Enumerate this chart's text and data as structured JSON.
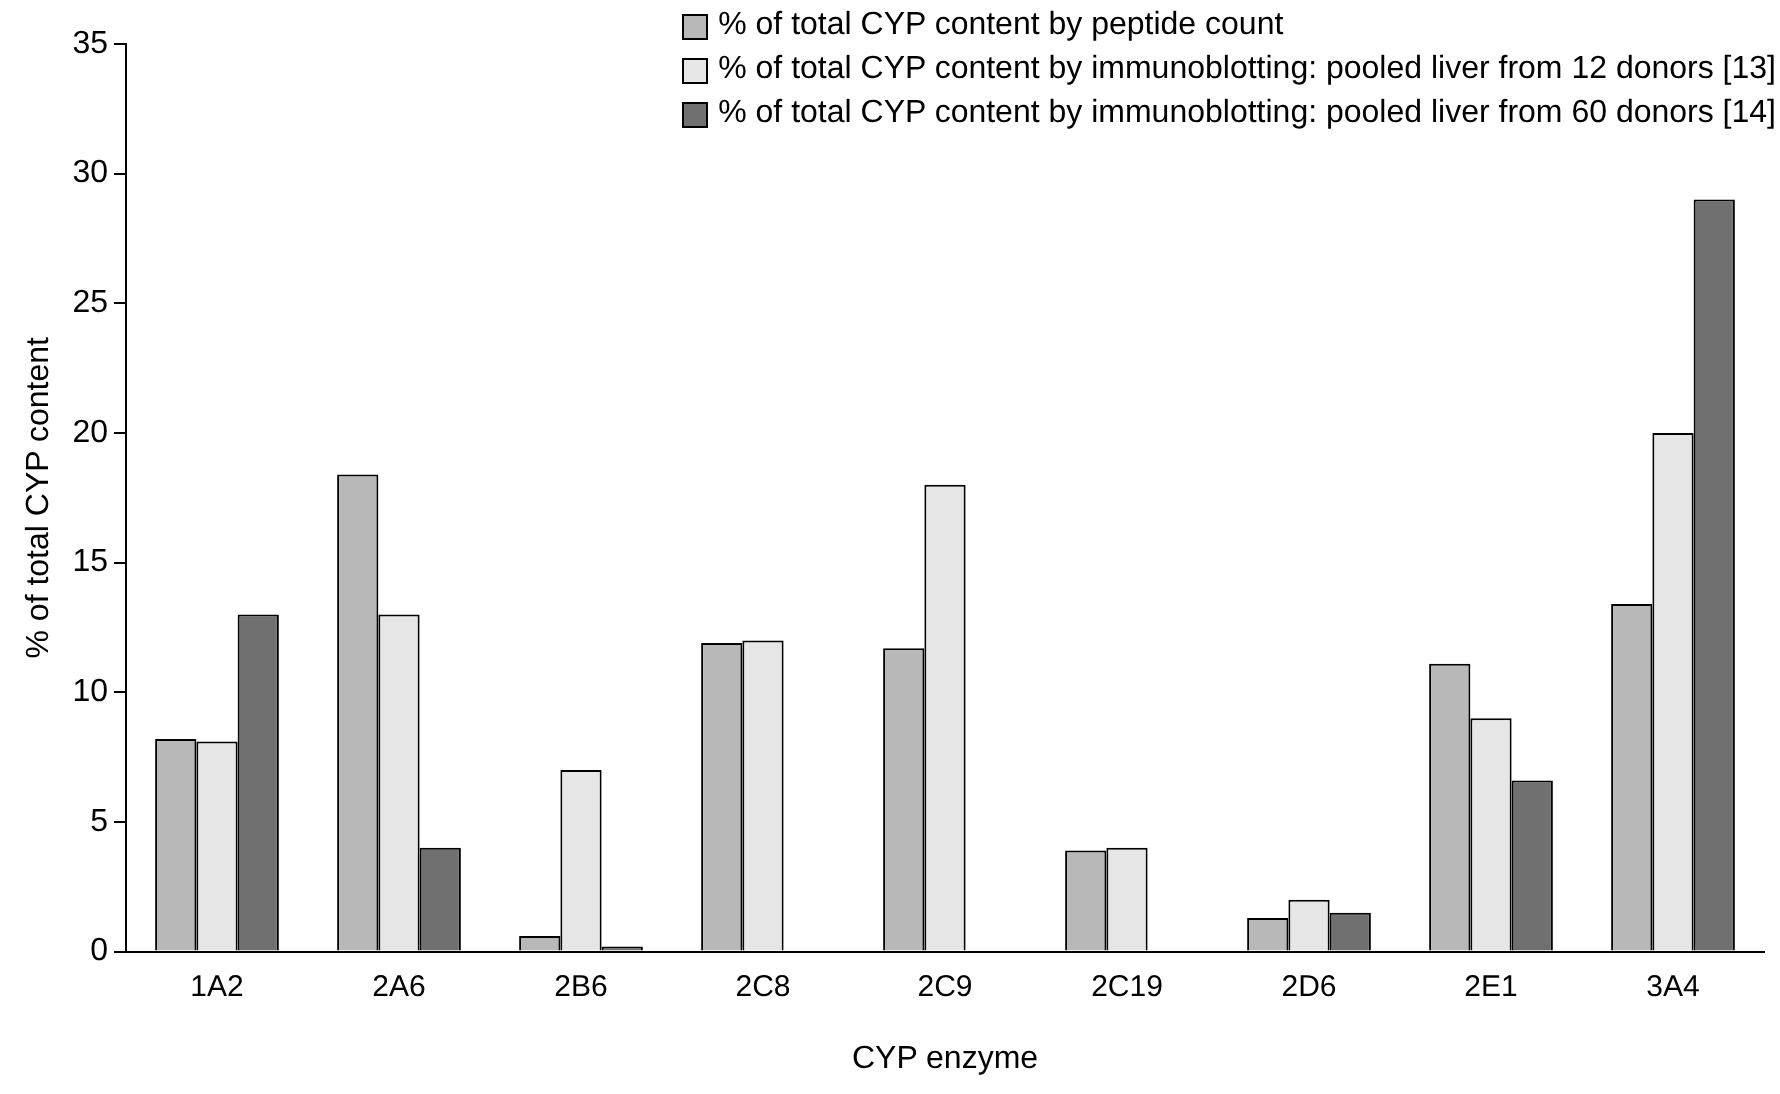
{
  "chart_data": {
    "type": "bar",
    "xlabel": "CYP enzyme",
    "ylabel": "% of total CYP content",
    "categories": [
      "1A2",
      "2A6",
      "2B6",
      "2C8",
      "2C9",
      "2C19",
      "2D6",
      "2E1",
      "3A4"
    ],
    "series": [
      {
        "name": "% of total CYP content by peptide count",
        "color": "#b8b8b8",
        "values": [
          8.2,
          18.4,
          0.6,
          11.9,
          11.7,
          3.9,
          1.3,
          11.1,
          13.4
        ]
      },
      {
        "name": "% of total CYP content by immunoblotting: pooled liver from 12 donors [13]",
        "color": "#e6e6e6",
        "values": [
          8.1,
          13.0,
          7.0,
          12.0,
          18.0,
          4.0,
          2.0,
          9.0,
          20.0
        ]
      },
      {
        "name": "% of total CYP content by immunoblotting: pooled liver from 60 donors [14]",
        "color": "#707070",
        "values": [
          13.0,
          4.0,
          0.2,
          null,
          null,
          null,
          1.5,
          6.6,
          29.0
        ]
      }
    ],
    "ylim": [
      0,
      35
    ],
    "yticks": [
      0,
      5,
      10,
      15,
      20,
      25,
      30,
      35
    ],
    "grid": false,
    "legend": "top right"
  }
}
